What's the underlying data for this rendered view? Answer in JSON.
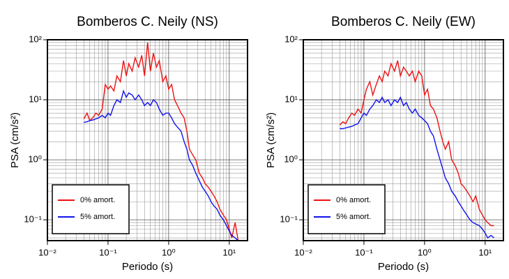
{
  "chart_data": [
    {
      "type": "line",
      "title": "Bomberos C. Neily (NS)",
      "x_label": "Periodo (s)",
      "y_label": "PSA (cm/s²)",
      "log_x": true,
      "log_y": true,
      "grid": true,
      "legend": "lower left",
      "xlim": [
        0.01,
        20
      ],
      "ylim": [
        0.045,
        100
      ],
      "xticks": [
        {
          "value": 0.01,
          "label": "10⁻²"
        },
        {
          "value": 0.1,
          "label": "10⁻¹"
        },
        {
          "value": 1,
          "label": "10⁰"
        },
        {
          "value": 10,
          "label": "10¹"
        }
      ],
      "yticks": [
        {
          "value": 0.1,
          "label": "10⁻¹"
        },
        {
          "value": 1,
          "label": "10⁰"
        },
        {
          "value": 10,
          "label": "10¹"
        },
        {
          "value": 100,
          "label": "10²"
        }
      ],
      "xminorticks": [
        0.02,
        0.03,
        0.04,
        0.05,
        0.06,
        0.07,
        0.08,
        0.09,
        0.2,
        0.3,
        0.4,
        0.5,
        0.6,
        0.7,
        0.8,
        0.9,
        2,
        3,
        4,
        5,
        6,
        7,
        8,
        9,
        20
      ],
      "yminorticks": [
        0.05,
        0.06,
        0.07,
        0.08,
        0.09,
        0.2,
        0.3,
        0.4,
        0.5,
        0.6,
        0.7,
        0.8,
        0.9,
        2,
        3,
        4,
        5,
        6,
        7,
        8,
        9,
        20,
        30,
        40,
        50,
        60,
        70,
        80,
        90
      ],
      "x": [
        0.04,
        0.045,
        0.05,
        0.056,
        0.063,
        0.07,
        0.08,
        0.09,
        0.1,
        0.11,
        0.125,
        0.14,
        0.16,
        0.18,
        0.2,
        0.22,
        0.25,
        0.28,
        0.32,
        0.36,
        0.4,
        0.45,
        0.5,
        0.56,
        0.63,
        0.7,
        0.8,
        0.9,
        1.0,
        1.12,
        1.25,
        1.4,
        1.6,
        1.8,
        2.0,
        2.2,
        2.5,
        2.8,
        3.2,
        3.6,
        4.0,
        4.5,
        5.0,
        5.6,
        6.3,
        7.0,
        8.0,
        9.0,
        10,
        11,
        12.5,
        14
      ],
      "series": [
        {
          "name": "0% amort.",
          "color": "#ee1111",
          "values": [
            4.8,
            6,
            4.5,
            5,
            6,
            5.5,
            7,
            18,
            15,
            17,
            14,
            25,
            20,
            45,
            25,
            40,
            30,
            50,
            35,
            55,
            25,
            90,
            30,
            60,
            35,
            45,
            20,
            25,
            15,
            18,
            10,
            8,
            6,
            5,
            3,
            1.5,
            1.2,
            1,
            0.6,
            0.5,
            0.4,
            0.35,
            0.3,
            0.25,
            0.2,
            0.15,
            0.12,
            0.1,
            0.07,
            0.05,
            0.09,
            0.045
          ]
        },
        {
          "name": "5% amort.",
          "color": "#1111ee",
          "values": [
            4.2,
            4.3,
            4.5,
            4.6,
            4.8,
            5,
            5.5,
            5,
            6,
            5.5,
            8,
            10,
            9,
            14,
            11,
            13,
            12,
            10,
            12,
            10,
            8,
            9,
            8,
            10,
            9,
            7,
            5.5,
            6,
            6,
            5,
            4,
            3.5,
            3,
            2,
            1.5,
            1.0,
            0.8,
            0.6,
            0.45,
            0.35,
            0.3,
            0.25,
            0.2,
            0.17,
            0.15,
            0.12,
            0.1,
            0.08,
            0.065,
            0.055,
            0.05,
            0.045
          ]
        }
      ]
    },
    {
      "type": "line",
      "title": "Bomberos C. Neily (EW)",
      "x_label": "Periodo (s)",
      "y_label": "PSA (cm/s²)",
      "log_x": true,
      "log_y": true,
      "grid": true,
      "legend": "lower left",
      "xlim": [
        0.01,
        20
      ],
      "ylim": [
        0.045,
        100
      ],
      "xticks": [
        {
          "value": 0.01,
          "label": "10⁻²"
        },
        {
          "value": 0.1,
          "label": "10⁻¹"
        },
        {
          "value": 1,
          "label": "10⁰"
        },
        {
          "value": 10,
          "label": "10¹"
        }
      ],
      "yticks": [
        {
          "value": 0.1,
          "label": "10⁻¹"
        },
        {
          "value": 1,
          "label": "10⁰"
        },
        {
          "value": 10,
          "label": "10¹"
        },
        {
          "value": 100,
          "label": "10²"
        }
      ],
      "xminorticks": [
        0.02,
        0.03,
        0.04,
        0.05,
        0.06,
        0.07,
        0.08,
        0.09,
        0.2,
        0.3,
        0.4,
        0.5,
        0.6,
        0.7,
        0.8,
        0.9,
        2,
        3,
        4,
        5,
        6,
        7,
        8,
        9,
        20
      ],
      "yminorticks": [
        0.05,
        0.06,
        0.07,
        0.08,
        0.09,
        0.2,
        0.3,
        0.4,
        0.5,
        0.6,
        0.7,
        0.8,
        0.9,
        2,
        3,
        4,
        5,
        6,
        7,
        8,
        9,
        20,
        30,
        40,
        50,
        60,
        70,
        80,
        90
      ],
      "x": [
        0.04,
        0.045,
        0.05,
        0.056,
        0.063,
        0.07,
        0.08,
        0.09,
        0.1,
        0.11,
        0.125,
        0.14,
        0.16,
        0.18,
        0.2,
        0.22,
        0.25,
        0.28,
        0.32,
        0.36,
        0.4,
        0.45,
        0.5,
        0.56,
        0.63,
        0.7,
        0.8,
        0.9,
        1.0,
        1.12,
        1.25,
        1.4,
        1.6,
        1.8,
        2.0,
        2.2,
        2.5,
        2.8,
        3.2,
        3.6,
        4.0,
        4.5,
        5.0,
        5.6,
        6.3,
        7.0,
        8.0,
        9.0,
        10,
        11,
        12.5,
        14
      ],
      "series": [
        {
          "name": "0% amort.",
          "color": "#ee1111",
          "values": [
            3.8,
            4.3,
            4,
            5,
            6,
            5.5,
            7,
            6,
            10,
            15,
            20,
            12,
            18,
            25,
            20,
            30,
            25,
            40,
            30,
            45,
            25,
            35,
            30,
            25,
            30,
            20,
            30,
            25,
            12,
            15,
            8,
            7,
            5,
            3,
            2,
            1.5,
            2,
            1,
            0.8,
            0.6,
            0.4,
            0.35,
            0.3,
            0.25,
            0.2,
            0.25,
            0.15,
            0.12,
            0.1,
            0.09,
            0.08,
            0.08
          ]
        },
        {
          "name": "5% amort.",
          "color": "#1111ee",
          "values": [
            3.3,
            3.3,
            3.4,
            3.5,
            3.6,
            3.8,
            4,
            5,
            6,
            5.5,
            7,
            8,
            10,
            9,
            11,
            9,
            10,
            8,
            10,
            9,
            11,
            8,
            9,
            7,
            6,
            7,
            5.5,
            5,
            4.5,
            4,
            3,
            2.5,
            1.5,
            1,
            0.7,
            0.5,
            0.4,
            0.3,
            0.25,
            0.2,
            0.17,
            0.14,
            0.12,
            0.1,
            0.09,
            0.085,
            0.08,
            0.07,
            0.06,
            0.05,
            0.055,
            0.05
          ]
        }
      ]
    }
  ]
}
